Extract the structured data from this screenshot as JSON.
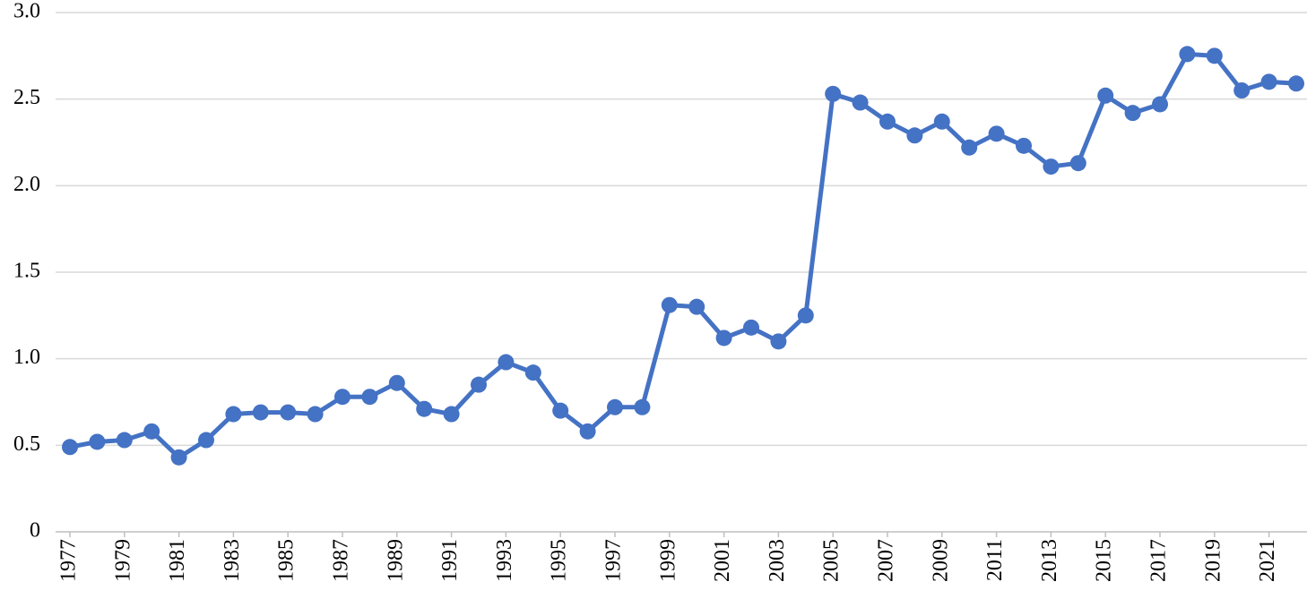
{
  "chart_data": {
    "type": "line",
    "color": "#4472c4",
    "grid": true,
    "x": [
      1977,
      1978,
      1979,
      1980,
      1981,
      1982,
      1983,
      1984,
      1985,
      1986,
      1987,
      1988,
      1989,
      1990,
      1991,
      1992,
      1993,
      1994,
      1995,
      1996,
      1997,
      1998,
      1999,
      2000,
      2001,
      2002,
      2003,
      2004,
      2005,
      2006,
      2007,
      2008,
      2009,
      2010,
      2011,
      2012,
      2013,
      2014,
      2015,
      2016,
      2017,
      2018,
      2019,
      2020,
      2021,
      2022
    ],
    "values": [
      0.49,
      0.52,
      0.53,
      0.58,
      0.43,
      0.53,
      0.68,
      0.69,
      0.69,
      0.68,
      0.78,
      0.78,
      0.86,
      0.71,
      0.68,
      0.85,
      0.98,
      0.92,
      0.7,
      0.58,
      0.72,
      0.72,
      1.31,
      1.3,
      1.12,
      1.18,
      1.1,
      1.25,
      2.53,
      2.48,
      2.37,
      2.29,
      2.37,
      2.22,
      2.3,
      2.23,
      2.11,
      2.13,
      2.52,
      2.42,
      2.47,
      2.76,
      2.75,
      2.55,
      2.6,
      2.59
    ],
    "xlim": [
      1977,
      2022
    ],
    "xticks": [
      1977,
      1979,
      1981,
      1983,
      1985,
      1987,
      1989,
      1991,
      1993,
      1995,
      1997,
      1999,
      2001,
      2003,
      2005,
      2007,
      2009,
      2011,
      2013,
      2015,
      2017,
      2019,
      2021
    ],
    "ylim": [
      0,
      3
    ],
    "yticks": [
      0,
      0.5,
      {
        "value": 1,
        "label": "1.0"
      },
      1.5,
      {
        "value": 2,
        "label": "2.0"
      },
      2.5,
      {
        "value": 3,
        "label": "3.0"
      }
    ]
  }
}
